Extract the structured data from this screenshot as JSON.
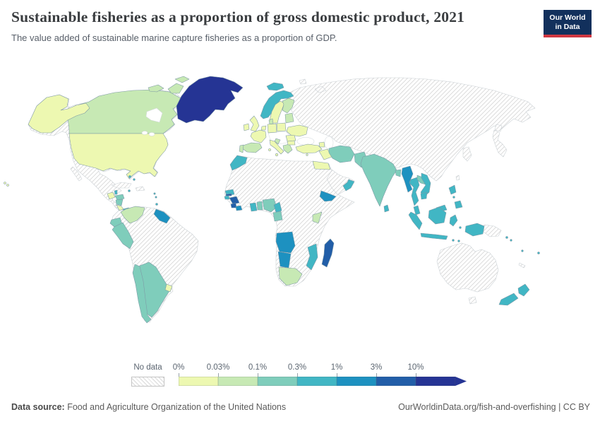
{
  "header": {
    "title": "Sustainable fisheries as a proportion of gross domestic product, 2021",
    "subtitle": "The value added of sustainable marine capture fisheries as a proportion of GDP.",
    "logo_line1": "Our World",
    "logo_line2": "in Data",
    "logo_bg_color": "#12305c",
    "logo_accent_color": "#cf3741"
  },
  "legend": {
    "no_data_label": "No data",
    "tick_labels": [
      "0%",
      "0.03%",
      "0.1%",
      "0.3%",
      "1%",
      "3%",
      "10%"
    ],
    "colors": [
      "#edf8b1",
      "#c7e9b4",
      "#7fcdbb",
      "#41b6c4",
      "#1d91c0",
      "#225ea8",
      "#253494"
    ]
  },
  "footer": {
    "source_label": "Data source:",
    "source_value": "Food and Agriculture Organization of the United Nations",
    "license": "OurWorldinData.org/fish-and-overfishing | CC BY"
  },
  "chart_data": {
    "type": "choropleth world map",
    "title": "Sustainable fisheries as a proportion of gross domestic product",
    "year": 2021,
    "unit": "% of GDP",
    "bin_ranges": [
      "0–0.03%",
      "0.03–0.1%",
      "0.1–0.3%",
      "0.3–1%",
      "1–3%",
      "3–10%",
      "10%+"
    ],
    "bin_colors": [
      "#edf8b1",
      "#c7e9b4",
      "#7fcdbb",
      "#41b6c4",
      "#1d91c0",
      "#225ea8",
      "#253494"
    ],
    "no_data_style": "white with gray diagonal hatching",
    "no_data_regions": [
      "Russia",
      "China",
      "Mongolia",
      "Central Asia",
      "Afghanistan",
      "Saudi Arabia",
      "Japan",
      "North Korea",
      "South Korea",
      "Australia",
      "Papua New Guinea",
      "Mexico",
      "Cuba",
      "Haiti",
      "Dominican Republic",
      "Venezuela",
      "Brazil",
      "Bolivia",
      "Paraguay",
      "most of interior Africa"
    ],
    "country_bins": {
      "canada": 1,
      "usa": 0,
      "alaska": 0,
      "hawaii": 0,
      "guatemala": 0,
      "belize": 3,
      "honduras": 2,
      "nicaragua": 2,
      "costa-rica": 0,
      "panama": 3,
      "bahamas": 3,
      "jamaica": 3,
      "lesser-antilles": 3,
      "trinidad": 3,
      "greenland": 6,
      "colombia": 1,
      "guyana-suriname": 4,
      "ecuador": 2,
      "peru": 2,
      "chile": 2,
      "argentina": 2,
      "uruguay": 0,
      "iceland": 3,
      "norway": 3,
      "sweden": 0,
      "finland": 1,
      "baltics": 1,
      "denmark": 1,
      "uk": 0,
      "ireland": 0,
      "benelux": 0,
      "germany": 0,
      "poland": 0,
      "france": 0,
      "spain": 1,
      "portugal": 1,
      "italy": 0,
      "croatia": 1,
      "greece": 1,
      "romania": 0,
      "bulgaria": 0,
      "ukraine": 0,
      "turkey": 0,
      "azerbaijan": 0,
      "cyprus": 0,
      "morocco": 3,
      "egypt": 0,
      "senegal": 3,
      "gambia": 5,
      "guinea-bissau": 3,
      "guinea": 5,
      "sierra-leone": 5,
      "liberia": 4,
      "ghana": 3,
      "togo-benin": 2,
      "nigeria": 2,
      "cameroon": 3,
      "gabon-congo": 2,
      "angola": 4,
      "namibia": 4,
      "south-africa": 1,
      "mozambique": 3,
      "kenya": 1,
      "madagascar": 5,
      "iraq": 0,
      "iran": 2,
      "yemen": 4,
      "oman": 3,
      "pakistan": 2,
      "india": 2,
      "sri-lanka": 3,
      "bangladesh": 2,
      "myanmar": 4,
      "thailand": 3,
      "laos": 2,
      "vietnam": 3,
      "cambodia": 3,
      "malaysia": 3,
      "indonesia": 3,
      "philippines": 3,
      "solomon-islands": 3,
      "vanuatu": 3,
      "fiji": 3,
      "new-zealand": 3
    }
  }
}
